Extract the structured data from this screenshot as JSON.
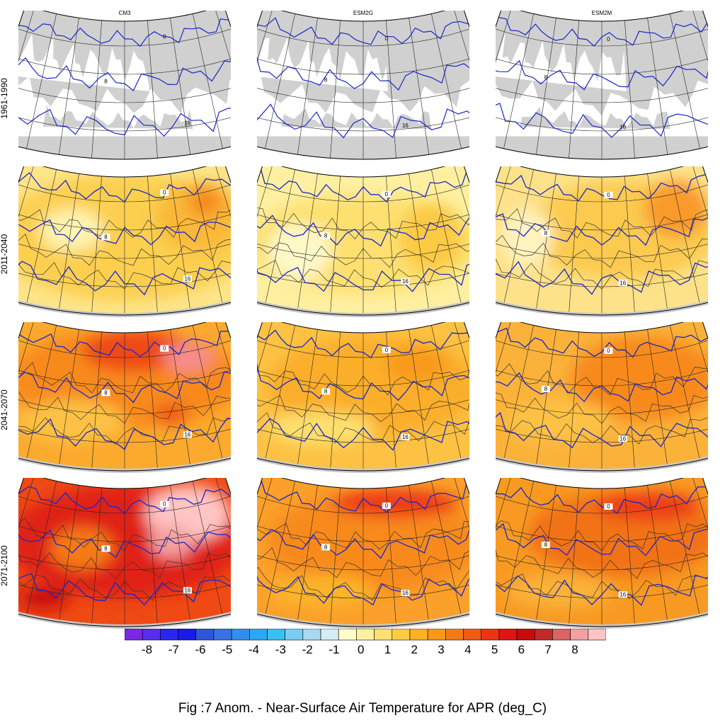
{
  "columns": [
    "CM3",
    "ESM2G",
    "ESM2M"
  ],
  "rows": [
    "1961-1990",
    "2011-2040",
    "2041-2070",
    "2071-2100"
  ],
  "contour_labels": [
    "0",
    "8",
    "16"
  ],
  "legend": {
    "labels": [
      "-8",
      "-7",
      "-6",
      "-5",
      "-4",
      "-3",
      "-2",
      "-1",
      "0",
      "1",
      "2",
      "3",
      "4",
      "5",
      "6",
      "7",
      "8"
    ],
    "colors": [
      "#7a28e6",
      "#5a2cf0",
      "#2a26f2",
      "#1a1ae8",
      "#2f56d8",
      "#3a72e6",
      "#2f8ef0",
      "#29a8f4",
      "#37c0f2",
      "#78cef0",
      "#a9d9f0",
      "#d5ecf6",
      "#ffffc8",
      "#fff1a0",
      "#ffe070",
      "#fdcb42",
      "#fcb11f",
      "#fa9716",
      "#f57a16",
      "#f25a12",
      "#ee3414",
      "#e01412",
      "#c80c0c",
      "#c22a2a",
      "#dc6464",
      "#f4a0a0",
      "#ffc4c4"
    ]
  },
  "panel_styles": [
    [
      "base",
      "mild_cm3",
      "warm_cm3",
      "hot_cm3"
    ],
    [
      "base",
      "mild_g",
      "warm_g",
      "hot_g"
    ],
    [
      "base",
      "mild_m",
      "warm_m",
      "hot_m"
    ]
  ],
  "caption": "Fig :7  Anom.  - Near-Surface Air Temperature for APR (deg_C)"
}
